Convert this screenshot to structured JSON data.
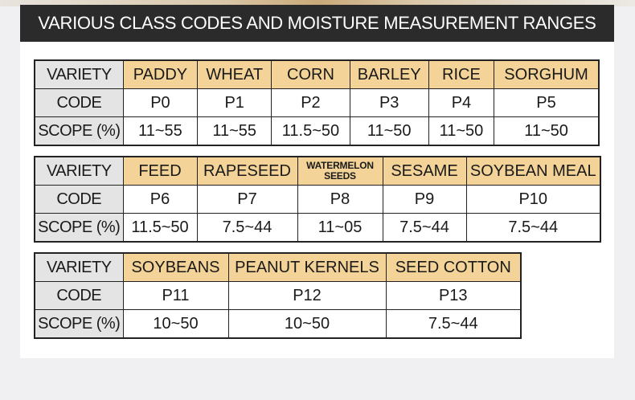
{
  "banner": {
    "title": "VARIOUS CLASS CODES AND MOISTURE MEASUREMENT RANGES"
  },
  "row_labels": {
    "variety": "VARIETY",
    "code": "CODE",
    "scope": "SCOPE (%)"
  },
  "tables": [
    {
      "varieties": [
        "PADDY",
        "WHEAT",
        "CORN",
        "BARLEY",
        "RICE",
        "SORGHUM"
      ],
      "codes": [
        "P0",
        "P1",
        "P2",
        "P3",
        "P4",
        "P5"
      ],
      "scopes": [
        "11~55",
        "11~55",
        "11.5~50",
        "11~50",
        "11~50",
        "11~50"
      ]
    },
    {
      "varieties": [
        "FEED",
        "RAPESEED",
        "WATERMELON SEEDS",
        "SESAME",
        "SOYBEAN MEAL"
      ],
      "watermelon_lines": [
        "WATERMELON",
        "SEEDS"
      ],
      "codes": [
        "P6",
        "P7",
        "P8",
        "P9",
        "P10"
      ],
      "scopes": [
        "11.5~50",
        "7.5~44",
        "11~05",
        "7.5~44",
        "7.5~44"
      ]
    },
    {
      "varieties": [
        "SOYBEANS",
        "PEANUT KERNELS",
        "SEED COTTON"
      ],
      "codes": [
        "P11",
        "P12",
        "P13"
      ],
      "scopes": [
        "10~50",
        "10~50",
        "7.5~44"
      ]
    }
  ]
}
